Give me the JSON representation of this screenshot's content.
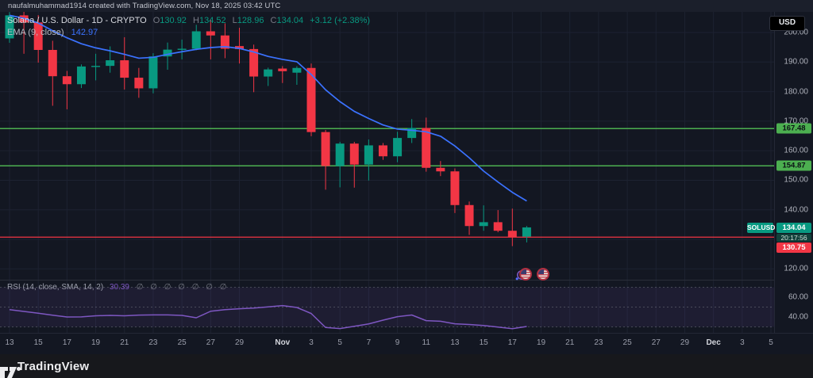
{
  "attribution": "naufalmuhammad1914 created with TradingView.com, Nov 18, 2025 03:42 UTC",
  "legend": {
    "symbol": "Solana / U.S. Dollar - 1D - CRYPTO",
    "open_label": "O",
    "open_value": "130.92",
    "high_label": "H",
    "high_value": "134.52",
    "low_label": "L",
    "low_value": "128.96",
    "close_label": "C",
    "close_value": "134.04",
    "change": "+3.12 (+2.38%)",
    "ema_label": "EMA (9, close)",
    "ema_value": "142.97"
  },
  "rsi_legend": {
    "label": "RSI (14, close, SMA, 14, 2)",
    "value": "30.39",
    "placeholders": "∅ ∅ ∅ ∅ ∅ ∅ ∅"
  },
  "price_scale": {
    "currency_button": "USD",
    "symbol_badge": "SOLUSD",
    "last_price": "134.04",
    "countdown": "20:17:56",
    "line_label": "130.75",
    "level_labels": [
      "167.48",
      "154.87"
    ]
  },
  "footer": {
    "brand": "TradingView"
  },
  "colors": {
    "up": "#089981",
    "down": "#f23645",
    "ema": "#3b72ff",
    "rsi": "#7e57c2",
    "level_green": "#4caf50",
    "level_red": "#f23645",
    "grid": "#1d2231",
    "axis_text": "#aeb1bb",
    "countdown_bg": "#11403a",
    "countdown_text": "#cfe0da"
  },
  "chart_data": {
    "type": "candlestick",
    "symbol": "SOLUSD",
    "interval": "1D",
    "title": "Solana / U.S. Dollar - 1D - CRYPTO",
    "price_ticks": [
      {
        "label": "200.00",
        "price": 200
      },
      {
        "label": "190.00",
        "price": 190
      },
      {
        "label": "180.00",
        "price": 180
      },
      {
        "label": "170.00",
        "price": 170
      },
      {
        "label": "160.00",
        "price": 160
      },
      {
        "label": "150.00",
        "price": 150
      },
      {
        "label": "140.00",
        "price": 140
      },
      {
        "label": "120.00",
        "price": 120
      }
    ],
    "grid_prices": [
      200,
      190,
      180,
      170,
      160,
      150,
      140,
      130,
      120
    ],
    "levels": [
      {
        "price": 167.48,
        "label": "167.48",
        "kind": "green"
      },
      {
        "price": 154.87,
        "label": "154.87",
        "kind": "green"
      },
      {
        "price": 130.75,
        "label": "130.75",
        "kind": "red"
      }
    ],
    "last": {
      "price": 134.04,
      "countdown": "20:17:56",
      "prev_line": 130.75
    },
    "candles": [
      [
        "Oct 13",
        198.0,
        206.9,
        196.5,
        205.8
      ],
      [
        "Oct 14",
        205.8,
        208.2,
        192.8,
        203.4
      ],
      [
        "Oct 15",
        203.4,
        205.9,
        189.8,
        194.1
      ],
      [
        "Oct 16",
        194.1,
        197.2,
        175.2,
        185.2
      ],
      [
        "Oct 17",
        185.2,
        187.0,
        174.0,
        182.5
      ],
      [
        "Oct 18",
        182.5,
        189.2,
        181.2,
        188.5
      ],
      [
        "Oct 19",
        188.5,
        192.8,
        183.8,
        188.7
      ],
      [
        "Oct 20",
        188.7,
        195.3,
        186.4,
        190.6
      ],
      [
        "Oct 21",
        190.6,
        198.4,
        180.7,
        184.7
      ],
      [
        "Oct 22",
        184.7,
        188.0,
        177.9,
        181.1
      ],
      [
        "Oct 23",
        181.1,
        193.0,
        179.4,
        191.9
      ],
      [
        "Oct 24",
        191.9,
        196.6,
        187.4,
        194.2
      ],
      [
        "Oct 25",
        194.2,
        197.6,
        190.9,
        194.5
      ],
      [
        "Oct 26",
        194.5,
        202.6,
        194.0,
        200.4
      ],
      [
        "Oct 27",
        200.4,
        204.3,
        190.9,
        199.0
      ],
      [
        "Oct 28",
        199.0,
        203.1,
        191.3,
        194.5
      ],
      [
        "Oct 29",
        195.4,
        201.6,
        189.5,
        194.4
      ],
      [
        "Oct 30",
        194.4,
        195.9,
        179.8,
        185.1
      ],
      [
        "Oct 31",
        185.1,
        188.1,
        181.9,
        187.5
      ],
      [
        "Nov 1",
        187.8,
        188.6,
        182.9,
        186.9
      ],
      [
        "Nov 2",
        186.4,
        188.6,
        182.3,
        188.0
      ],
      [
        "Nov 3",
        188.0,
        189.5,
        164.9,
        166.3
      ],
      [
        "Nov 4",
        166.3,
        167.0,
        146.8,
        154.8
      ],
      [
        "Nov 5",
        154.8,
        163.0,
        147.6,
        162.4
      ],
      [
        "Nov 6",
        162.4,
        163.0,
        147.5,
        155.3
      ],
      [
        "Nov 7",
        155.3,
        163.8,
        149.9,
        161.8
      ],
      [
        "Nov 8",
        161.8,
        162.6,
        156.9,
        158.1
      ],
      [
        "Nov 9",
        158.1,
        166.4,
        156.1,
        164.3
      ],
      [
        "Nov 10",
        164.3,
        170.7,
        162.6,
        167.7
      ],
      [
        "Nov 11",
        167.7,
        171.2,
        152.9,
        154.2
      ],
      [
        "Nov 12",
        154.2,
        156.5,
        151.4,
        153.0
      ],
      [
        "Nov 13",
        153.0,
        154.0,
        138.9,
        141.6
      ],
      [
        "Nov 14",
        141.6,
        142.8,
        131.5,
        134.5
      ],
      [
        "Nov 15",
        134.5,
        141.5,
        132.9,
        135.8
      ],
      [
        "Nov 16",
        135.8,
        139.9,
        132.4,
        132.9
      ],
      [
        "Nov 17",
        132.9,
        140.4,
        127.7,
        130.75
      ],
      [
        "Nov 18",
        130.92,
        134.52,
        128.96,
        134.04
      ]
    ],
    "ema9": [
      205.8,
      204.8,
      203.2,
      200.6,
      198.2,
      196.2,
      194.8,
      193.8,
      192.6,
      191.3,
      191.6,
      192.6,
      193.5,
      194.3,
      194.9,
      195.2,
      194.6,
      193.4,
      191.9,
      190.9,
      190.1,
      185.8,
      180.6,
      176.6,
      173.3,
      170.9,
      168.7,
      167.3,
      166.9,
      166.4,
      164.9,
      161.6,
      157.6,
      153.1,
      149.4,
      145.9,
      142.97
    ],
    "rsi14": [
      47.4,
      45.6,
      43.8,
      41.8,
      40.0,
      40.1,
      41.2,
      41.6,
      41.2,
      41.9,
      42.1,
      42.1,
      41.6,
      39.2,
      45.8,
      47.4,
      48.3,
      49.0,
      50.2,
      51.5,
      49.6,
      43.5,
      29.4,
      28.3,
      30.6,
      33.0,
      36.8,
      40.3,
      42.0,
      36.3,
      35.7,
      33.1,
      32.4,
      31.4,
      29.8,
      28.2,
      30.39
    ],
    "rsi_bands": [
      70,
      50,
      30
    ],
    "rsi_ticks": [
      {
        "label": "60.00",
        "value": 60
      },
      {
        "label": "40.00",
        "value": 40
      }
    ],
    "time_ticks": [
      {
        "label": "13",
        "i": 0
      },
      {
        "label": "15",
        "i": 2
      },
      {
        "label": "17",
        "i": 4
      },
      {
        "label": "19",
        "i": 6
      },
      {
        "label": "21",
        "i": 8
      },
      {
        "label": "23",
        "i": 10
      },
      {
        "label": "25",
        "i": 12
      },
      {
        "label": "27",
        "i": 14
      },
      {
        "label": "29",
        "i": 16
      },
      {
        "label": "Nov",
        "i": 19,
        "month": true
      },
      {
        "label": "3",
        "i": 21
      },
      {
        "label": "5",
        "i": 23
      },
      {
        "label": "7",
        "i": 25
      },
      {
        "label": "9",
        "i": 27
      },
      {
        "label": "11",
        "i": 29
      },
      {
        "label": "13",
        "i": 31
      },
      {
        "label": "15",
        "i": 33
      },
      {
        "label": "17",
        "i": 35
      },
      {
        "label": "19",
        "i": 37
      },
      {
        "label": "21",
        "i": 39
      },
      {
        "label": "23",
        "i": 41
      },
      {
        "label": "25",
        "i": 43
      },
      {
        "label": "27",
        "i": 45
      },
      {
        "label": "29",
        "i": 47
      },
      {
        "label": "Dec",
        "i": 49,
        "month": true
      },
      {
        "label": "3",
        "i": 51
      },
      {
        "label": "5",
        "i": 53
      }
    ],
    "legend_position": "top-left",
    "grid": true
  }
}
